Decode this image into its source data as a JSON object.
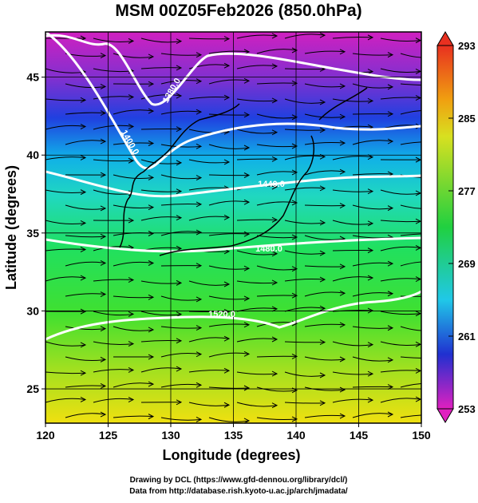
{
  "title": "MSM 00Z05Feb2026 (850.0hPa)",
  "x_axis": {
    "label": "Longitude (degrees)",
    "ticks": [
      120,
      125,
      130,
      135,
      140,
      145,
      150
    ],
    "lim": [
      120,
      150
    ]
  },
  "y_axis": {
    "label": "Latitude  (degrees)",
    "ticks": [
      25,
      30,
      35,
      40,
      45
    ],
    "lim": [
      22.8,
      47.9
    ]
  },
  "colorbar": {
    "ticks": [
      253,
      261,
      269,
      277,
      285,
      293
    ],
    "lim": [
      253,
      293
    ]
  },
  "contour_labels": [
    "1380.0",
    "1400.0",
    "1440.0",
    "1480.0",
    "1520.0"
  ],
  "credits": [
    "Drawing by DCL (https://www.gfd-dennou.org/library/dcl/)",
    "Data from http://database.rish.kyoto-u.ac.jp/arch/jmadata/"
  ]
}
